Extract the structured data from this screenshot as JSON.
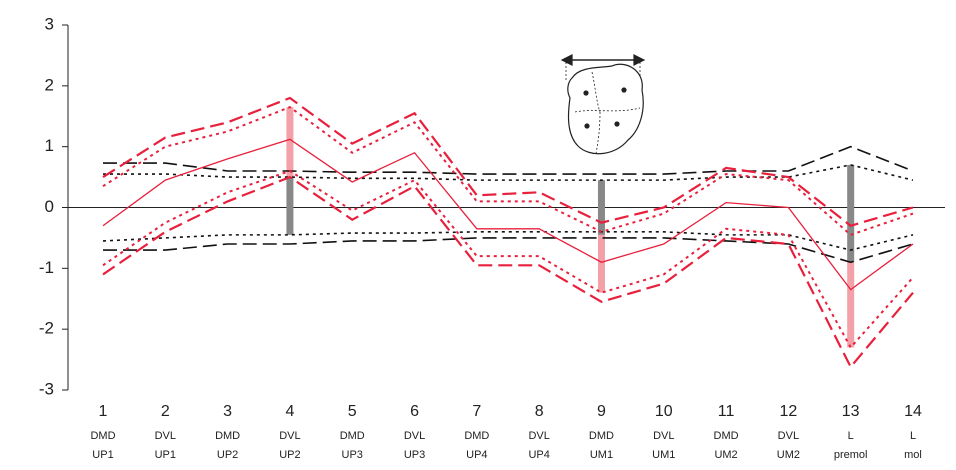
{
  "chart_data": {
    "type": "line",
    "categories": [
      "1",
      "2",
      "3",
      "4",
      "5",
      "6",
      "7",
      "8",
      "9",
      "10",
      "11",
      "12",
      "13",
      "14"
    ],
    "category_labels": [
      [
        "DMD",
        "UP1"
      ],
      [
        "DVL",
        "UP1"
      ],
      [
        "DMD",
        "UP2"
      ],
      [
        "DVL",
        "UP2"
      ],
      [
        "DMD",
        "UP3"
      ],
      [
        "DVL",
        "UP3"
      ],
      [
        "DMD",
        "UP4"
      ],
      [
        "DVL",
        "UP4"
      ],
      [
        "DMD",
        "UM1"
      ],
      [
        "DVL",
        "UM1"
      ],
      [
        "DMD",
        "UM2"
      ],
      [
        "DVL",
        "UM2"
      ],
      [
        "L",
        "premol"
      ],
      [
        "L",
        "mol"
      ]
    ],
    "ylim": [
      -3,
      3
    ],
    "yticks": [
      -3,
      -2,
      -1,
      0,
      1,
      2,
      3
    ],
    "series": [
      {
        "color": "#111111",
        "dash": "dashed",
        "values": [
          0.73,
          0.73,
          0.6,
          0.6,
          0.58,
          0.58,
          0.55,
          0.55,
          0.55,
          0.55,
          0.6,
          0.6,
          1.0,
          0.6
        ]
      },
      {
        "color": "#111111",
        "dash": "dashed",
        "values": [
          -0.7,
          -0.7,
          -0.6,
          -0.6,
          -0.55,
          -0.55,
          -0.5,
          -0.5,
          -0.5,
          -0.5,
          -0.55,
          -0.6,
          -0.9,
          -0.6
        ]
      },
      {
        "color": "#111111",
        "dash": "dotted",
        "values": [
          0.55,
          0.55,
          0.5,
          0.5,
          0.48,
          0.48,
          0.45,
          0.45,
          0.45,
          0.45,
          0.5,
          0.5,
          0.7,
          0.45
        ]
      },
      {
        "color": "#111111",
        "dash": "dotted",
        "values": [
          -0.55,
          -0.5,
          -0.45,
          -0.45,
          -0.42,
          -0.42,
          -0.4,
          -0.4,
          -0.4,
          -0.4,
          -0.45,
          -0.45,
          -0.7,
          -0.45
        ]
      },
      {
        "color": "#e8203c",
        "dash": "dashed",
        "values": [
          0.5,
          1.15,
          1.4,
          1.8,
          1.05,
          1.55,
          0.2,
          0.25,
          -0.25,
          0.0,
          0.65,
          0.5,
          -0.3,
          0.0
        ]
      },
      {
        "color": "#e8203c",
        "dash": "dashed",
        "values": [
          -1.1,
          -0.4,
          0.1,
          0.5,
          -0.2,
          0.35,
          -0.95,
          -0.95,
          -1.55,
          -1.25,
          -0.5,
          -0.6,
          -2.62,
          -1.4
        ]
      },
      {
        "color": "#e8203c",
        "dash": "dotted",
        "values": [
          0.35,
          1.0,
          1.25,
          1.65,
          0.9,
          1.4,
          0.1,
          0.1,
          -0.4,
          -0.1,
          0.55,
          0.45,
          -0.45,
          -0.1
        ]
      },
      {
        "color": "#e8203c",
        "dash": "dotted",
        "values": [
          -0.95,
          -0.25,
          0.25,
          0.6,
          -0.05,
          0.45,
          -0.8,
          -0.8,
          -1.4,
          -1.1,
          -0.35,
          -0.45,
          -2.3,
          -1.15
        ]
      },
      {
        "color": "#e8203c",
        "dash": "solid",
        "values": [
          -0.3,
          0.45,
          0.8,
          1.12,
          0.42,
          0.9,
          -0.35,
          -0.35,
          -0.9,
          -0.6,
          0.08,
          0.0,
          -1.35,
          -0.6
        ]
      }
    ],
    "ranges": [
      {
        "x": 4,
        "low": -0.45,
        "high": 0.5,
        "color": "#888888"
      },
      {
        "x": 4,
        "low": 0.5,
        "high": 1.65,
        "color": "#f4a0a8"
      },
      {
        "x": 9,
        "low": -0.45,
        "high": 0.45,
        "color": "#888888"
      },
      {
        "x": 9,
        "low": -1.4,
        "high": -0.45,
        "color": "#f4a0a8"
      },
      {
        "x": 13,
        "low": -0.9,
        "high": 0.7,
        "color": "#888888"
      },
      {
        "x": 13,
        "low": -2.3,
        "high": -0.9,
        "color": "#f4a0a8"
      }
    ]
  }
}
